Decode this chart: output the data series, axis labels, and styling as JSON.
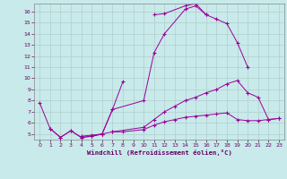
{
  "xlabel": "Windchill (Refroidissement éolien,°C)",
  "bg_color": "#c8eaea",
  "grid_color": "#b0cece",
  "line_color": "#990099",
  "xlim": [
    -0.5,
    23.5
  ],
  "ylim": [
    4.5,
    16.7
  ],
  "xticks": [
    0,
    1,
    2,
    3,
    4,
    5,
    6,
    7,
    8,
    9,
    10,
    11,
    12,
    13,
    14,
    15,
    16,
    17,
    18,
    19,
    20,
    21,
    22,
    23
  ],
  "yticks": [
    5,
    6,
    7,
    8,
    9,
    10,
    11,
    12,
    13,
    14,
    15,
    16
  ],
  "lines": [
    {
      "x": [
        0,
        1,
        2,
        3,
        4,
        5,
        6,
        7,
        8
      ],
      "y": [
        7.8,
        5.5,
        4.7,
        5.3,
        4.7,
        4.8,
        5.0,
        7.2,
        9.7
      ]
    },
    {
      "x": [
        1,
        2,
        3,
        4,
        5,
        6,
        7,
        10,
        11,
        12,
        14,
        15,
        16,
        17,
        18,
        19,
        20
      ],
      "y": [
        5.5,
        4.7,
        5.3,
        4.7,
        4.8,
        5.0,
        7.2,
        8.0,
        12.3,
        14.0,
        16.2,
        16.5,
        15.7,
        15.3,
        14.9,
        13.2,
        11.0
      ]
    },
    {
      "x": [
        11,
        12,
        14,
        15,
        16
      ],
      "y": [
        15.7,
        15.8,
        16.5,
        16.7,
        15.7
      ]
    },
    {
      "x": [
        4,
        5,
        6,
        7,
        8,
        10,
        11,
        12,
        13,
        14,
        15,
        16,
        17,
        18,
        19,
        20,
        21,
        22,
        23
      ],
      "y": [
        4.8,
        4.9,
        5.0,
        5.2,
        5.2,
        5.4,
        5.8,
        6.1,
        6.3,
        6.5,
        6.6,
        6.7,
        6.8,
        6.9,
        6.3,
        6.2,
        6.2,
        6.3,
        6.4
      ]
    },
    {
      "x": [
        7,
        10,
        11,
        12,
        13,
        14,
        15,
        16,
        17,
        18,
        19,
        20,
        21,
        22,
        23
      ],
      "y": [
        5.2,
        5.6,
        6.3,
        7.0,
        7.5,
        8.0,
        8.3,
        8.7,
        9.0,
        9.5,
        9.8,
        8.7,
        8.3,
        6.3,
        6.4
      ]
    }
  ]
}
